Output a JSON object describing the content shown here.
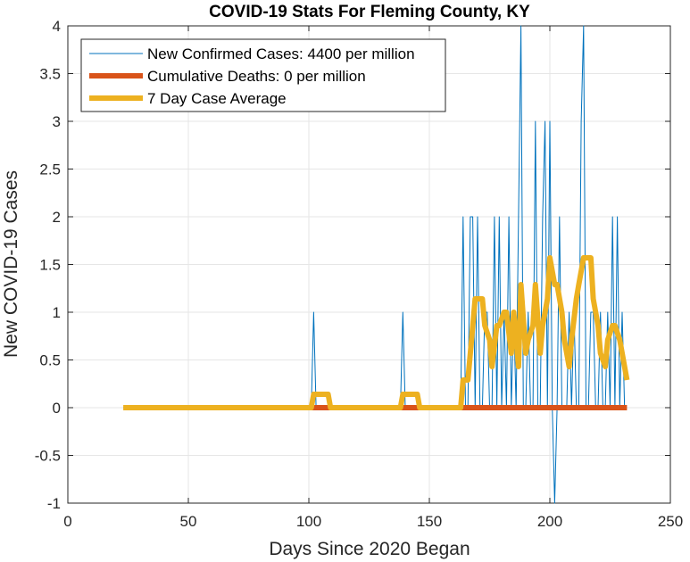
{
  "chart_data": {
    "type": "line",
    "title": "COVID-19 Stats For Fleming County, KY",
    "xlabel": "Days Since 2020 Began",
    "ylabel": "New COVID-19 Cases",
    "xlim": [
      0,
      250
    ],
    "ylim": [
      -1,
      4
    ],
    "xticks": [
      0,
      50,
      100,
      150,
      200,
      250
    ],
    "xtick_labels": [
      "0",
      "50",
      "100",
      "150",
      "200",
      "250"
    ],
    "yticks": [
      -1,
      -0.5,
      0,
      0.5,
      1,
      1.5,
      2,
      2.5,
      3,
      3.5,
      4
    ],
    "ytick_labels": [
      "-1",
      "-0.5",
      "0",
      "0.5",
      "1",
      "1.5",
      "2",
      "2.5",
      "3",
      "3.5",
      "4"
    ],
    "grid": true,
    "legend_position": "top-left",
    "series": [
      {
        "name": "New Confirmed Cases: 4400 per million",
        "color": "#0072BD",
        "style": "thin",
        "x": [
          23,
          101,
          102,
          103,
          138,
          139,
          140,
          163,
          164,
          165,
          166,
          167,
          168,
          169,
          170,
          171,
          172,
          173,
          174,
          175,
          176,
          177,
          178,
          179,
          180,
          181,
          182,
          183,
          184,
          185,
          186,
          187,
          188,
          189,
          190,
          191,
          192,
          193,
          194,
          195,
          196,
          197,
          198,
          199,
          200,
          201,
          202,
          203,
          204,
          205,
          206,
          207,
          208,
          209,
          210,
          211,
          212,
          213,
          214,
          215,
          216,
          217,
          218,
          219,
          220,
          221,
          222,
          223,
          224,
          225,
          226,
          227,
          228,
          229,
          230,
          231
        ],
        "y": [
          0,
          0,
          1,
          0,
          0,
          1,
          0,
          0,
          2,
          0,
          0,
          2,
          2,
          0,
          2,
          0,
          0,
          1,
          1,
          0,
          0,
          2,
          0,
          2,
          0,
          1,
          0,
          2,
          0,
          1,
          0,
          2,
          4,
          0,
          0,
          1,
          0,
          0,
          3,
          0,
          0,
          2,
          3,
          0,
          3,
          0,
          -1,
          0,
          2,
          0,
          0,
          0,
          1,
          0,
          1,
          0,
          0,
          3,
          4,
          0,
          0,
          1,
          1,
          0,
          0,
          1,
          0,
          0,
          1,
          0,
          2,
          0,
          2,
          0,
          1,
          0
        ]
      },
      {
        "name": "Cumulative Deaths: 0 per million",
        "color": "#D95319",
        "style": "thick",
        "x": [
          101,
          102,
          103,
          104,
          105,
          106,
          107,
          108,
          109,
          138,
          139,
          140,
          141,
          142,
          143,
          144,
          145,
          146,
          164,
          232
        ],
        "y": [
          0,
          0,
          0,
          0,
          0,
          0,
          0,
          0,
          0,
          0,
          0,
          0,
          0,
          0,
          0,
          0,
          0,
          0,
          0,
          0
        ]
      },
      {
        "name": "7 Day Case Average",
        "color": "#EDB120",
        "style": "thick",
        "x": [
          23,
          101,
          102,
          108,
          109,
          138,
          139,
          145,
          146,
          163,
          164,
          166,
          167,
          169,
          170,
          172,
          173,
          175,
          176,
          178,
          179,
          181,
          182,
          184,
          185,
          187,
          188,
          190,
          191,
          193,
          194,
          196,
          197,
          199,
          200,
          202,
          203,
          205,
          206,
          208,
          209,
          211,
          212,
          214,
          215,
          217,
          218,
          220,
          221,
          223,
          224,
          226,
          227,
          229,
          230,
          232
        ],
        "y": [
          0,
          0,
          0.14,
          0.14,
          0,
          0,
          0.14,
          0.14,
          0,
          0,
          0.29,
          0.29,
          0.57,
          1.14,
          1.14,
          1.14,
          0.86,
          0.71,
          0.43,
          0.86,
          0.86,
          1.0,
          1.0,
          0.57,
          1.0,
          0.43,
          1.29,
          0.57,
          0.71,
          0.86,
          1.29,
          0.57,
          0.86,
          1.14,
          1.57,
          1.29,
          1.29,
          1.0,
          0.71,
          0.43,
          0.71,
          1.14,
          1.29,
          1.57,
          1.57,
          1.57,
          1.14,
          0.86,
          0.57,
          0.43,
          0.71,
          0.86,
          0.86,
          0.71,
          0.57,
          0.29
        ]
      }
    ]
  }
}
